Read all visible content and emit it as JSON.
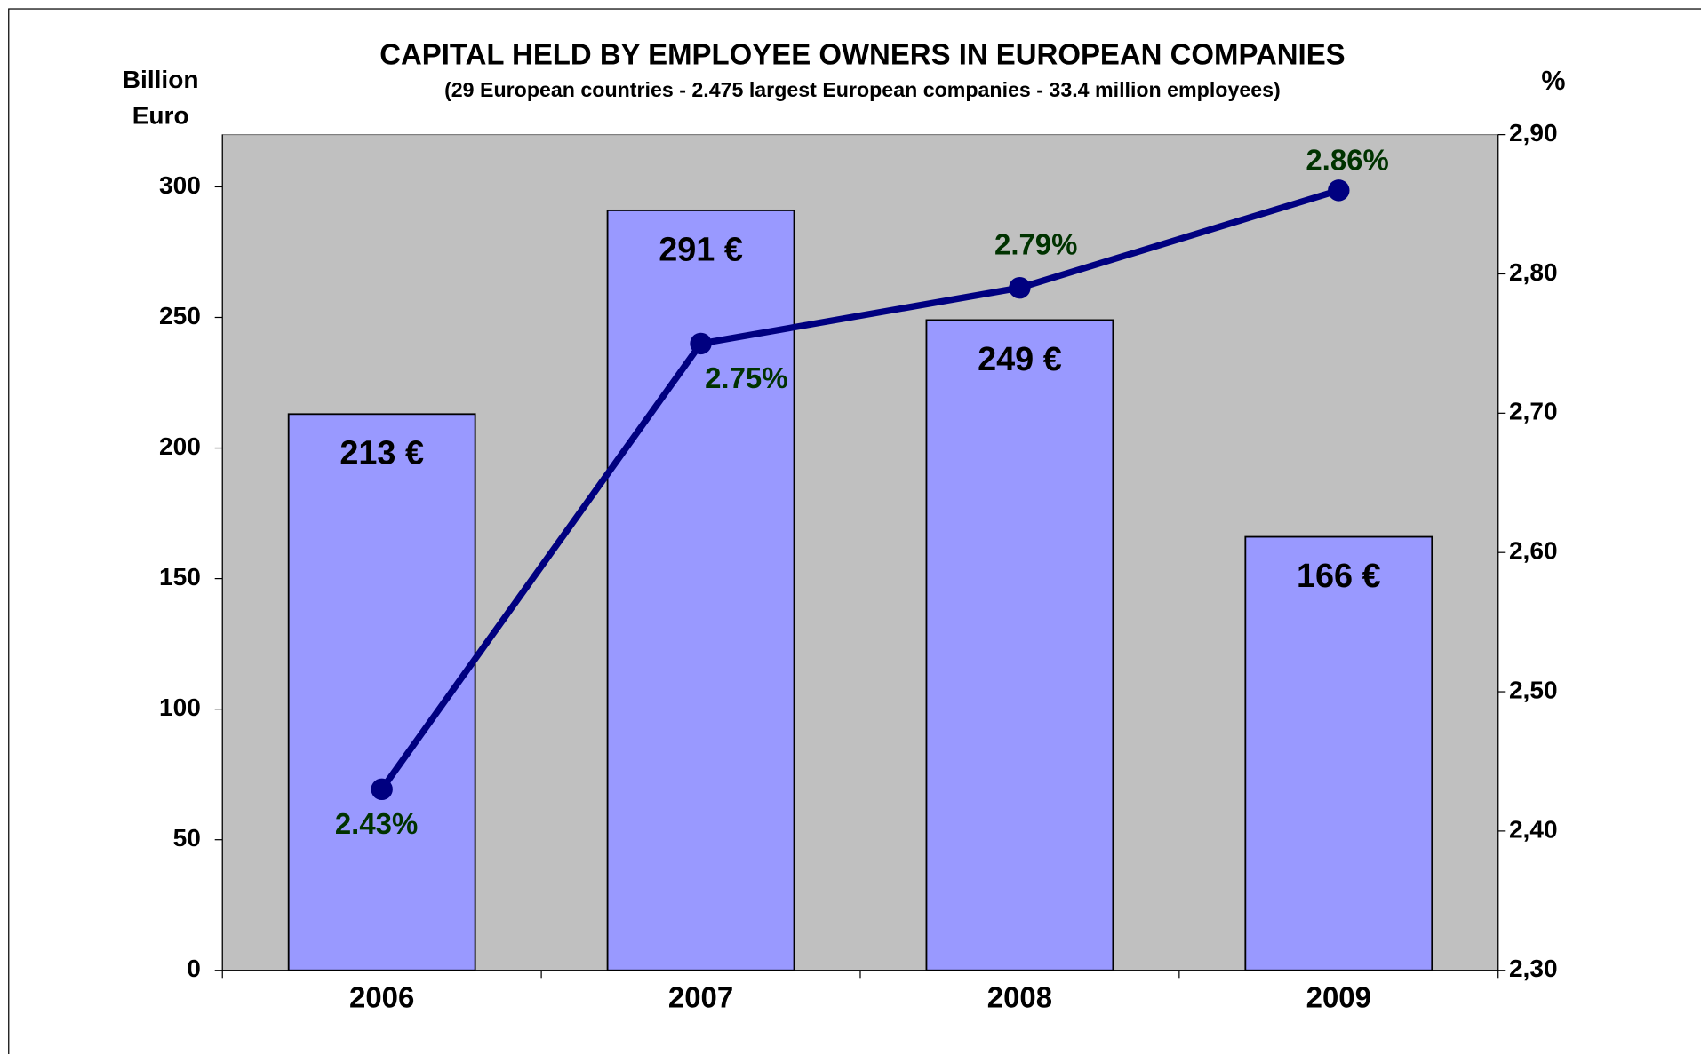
{
  "chart_data": {
    "type": "bar",
    "title": "CAPITAL  HELD  BY  EMPLOYEE  OWNERS  IN  EUROPEAN  COMPANIES",
    "subtitle": "(29 European countries - 2.475 largest European companies - 33.4 million employees)",
    "y_label": [
      "Billion",
      "Euro"
    ],
    "y2_label": "%",
    "categories": [
      "2006",
      "2007",
      "2008",
      "2009"
    ],
    "series": [
      {
        "type": "bar",
        "color": "#9999ff",
        "values": [
          213,
          291,
          249,
          166
        ],
        "value_labels": [
          "213 €",
          "291 €",
          "249 €",
          "166 €"
        ]
      },
      {
        "type": "line",
        "axis": "y2",
        "color": "#000080",
        "label_color": "#003300",
        "values": [
          2.43,
          2.75,
          2.79,
          2.86
        ],
        "value_labels": [
          "2.43%",
          "2.75%",
          "2.79%",
          "2.86%"
        ]
      }
    ],
    "ylim": [
      0,
      320
    ],
    "yticks": [
      0,
      50,
      100,
      150,
      200,
      250,
      300
    ],
    "y2lim": [
      2.3,
      2.9
    ],
    "y2ticks": [
      {
        "value": 2.3,
        "label": "2,30"
      },
      {
        "value": 2.4,
        "label": "2,40"
      },
      {
        "value": 2.5,
        "label": "2,50"
      },
      {
        "value": 2.6,
        "label": "2,60"
      },
      {
        "value": 2.7,
        "label": "2,70"
      },
      {
        "value": 2.8,
        "label": "2,80"
      },
      {
        "value": 2.9,
        "label": "2,90"
      }
    ],
    "plot_background": "#c0c0c0"
  }
}
